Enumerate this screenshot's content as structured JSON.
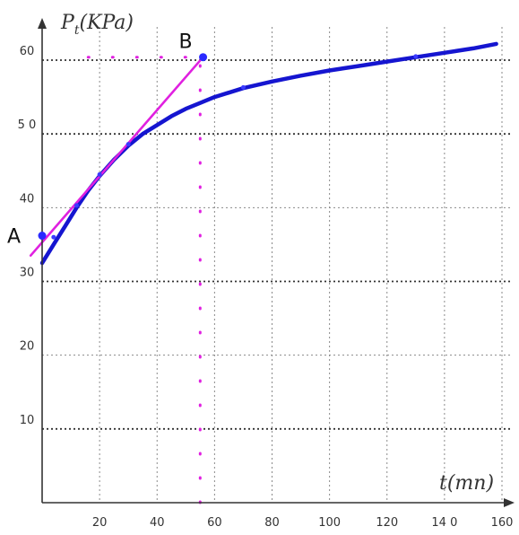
{
  "chart_data": {
    "type": "line",
    "title": "",
    "xlabel": "t(mn)",
    "ylabel": "Pt(KPa)",
    "ylabel_main": "P",
    "ylabel_sub": "t",
    "ylabel_rest": "(KPa)",
    "xlim": [
      0,
      160
    ],
    "ylim": [
      0,
      65
    ],
    "x_ticks": [
      {
        "value": 20,
        "label": "20"
      },
      {
        "value": 40,
        "label": "40"
      },
      {
        "value": 60,
        "label": "60"
      },
      {
        "value": 80,
        "label": "80"
      },
      {
        "value": 100,
        "label": "100"
      },
      {
        "value": 120,
        "label": "120"
      },
      {
        "value": 140,
        "label": "14 0"
      },
      {
        "value": 160,
        "label": "160"
      }
    ],
    "y_ticks": [
      {
        "value": 10,
        "label": "10"
      },
      {
        "value": 20,
        "label": "20"
      },
      {
        "value": 30,
        "label": "30"
      },
      {
        "value": 40,
        "label": "40"
      },
      {
        "value": 50,
        "label": "5 0"
      },
      {
        "value": 60,
        "label": "60"
      }
    ],
    "grid": true,
    "major_grid_y": [
      10,
      30,
      50,
      60
    ],
    "series": [
      {
        "color": "#1515d0",
        "style": "solid",
        "x": [
          0,
          4,
          8,
          12,
          16,
          20,
          25,
          30,
          35,
          40,
          45,
          50,
          55,
          60,
          70,
          80,
          90,
          100,
          110,
          120,
          130,
          140,
          150,
          158
        ],
        "y": [
          32.5,
          35.0,
          37.5,
          40.0,
          42.3,
          44.3,
          46.5,
          48.4,
          50.0,
          51.2,
          52.4,
          53.4,
          54.2,
          55.0,
          56.2,
          57.1,
          57.9,
          58.6,
          59.2,
          59.8,
          60.4,
          61.0,
          61.6,
          62.2
        ]
      },
      {
        "color": "#e020e0",
        "style": "solid",
        "x": [
          -4,
          56
        ],
        "y": [
          33.5,
          60.4
        ]
      },
      {
        "color": "#e020e0",
        "style": "dotted",
        "x": [
          55,
          55
        ],
        "y": [
          0,
          60.4
        ]
      },
      {
        "color": "#e020e0",
        "style": "dotted",
        "x": [
          16,
          55
        ],
        "y": [
          60.4,
          60.4
        ]
      }
    ],
    "points": [
      {
        "label": "A",
        "x": 0,
        "y": 36.2
      },
      {
        "label": "B",
        "x": 56,
        "y": 60.4
      }
    ],
    "markers": [
      {
        "x": 4,
        "y": 36.0
      },
      {
        "x": 12,
        "y": 40.3
      },
      {
        "x": 20,
        "y": 44.5
      },
      {
        "x": 30,
        "y": 48.6
      },
      {
        "x": 70,
        "y": 56.3
      },
      {
        "x": 130,
        "y": 60.5
      }
    ]
  }
}
